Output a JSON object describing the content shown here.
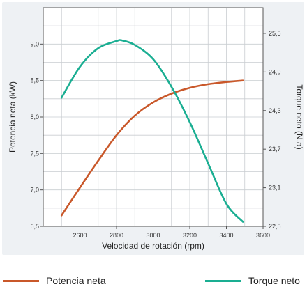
{
  "chart_data": {
    "type": "line",
    "xlabel": "Velocidad de rotación (rpm)",
    "ylabel_left": "Potencia neta (kW)",
    "ylabel_right": "Torque neto (N.a)",
    "xlim": [
      2400,
      3600
    ],
    "x_ticks": [
      "2600",
      "2800",
      "3000",
      "3200",
      "3400",
      "3600"
    ],
    "y_left_lim": [
      6.5,
      9.5
    ],
    "y_left_ticks": [
      "6,5",
      "7,0",
      "7,5",
      "8,0",
      "8,5",
      "9,0"
    ],
    "y_right_lim": [
      22.5,
      25.9
    ],
    "y_right_ticks": [
      "22,5",
      "23,1",
      "23,7",
      "24,3",
      "24,9",
      "25,5"
    ],
    "grid": true,
    "legend_position": "bottom",
    "series": [
      {
        "name": "Potencia neta",
        "axis": "left",
        "color": "#c9582a",
        "x": [
          2500,
          2600,
          2700,
          2800,
          2900,
          3000,
          3100,
          3200,
          3300,
          3400,
          3490
        ],
        "y": [
          6.65,
          7.03,
          7.4,
          7.75,
          8.02,
          8.2,
          8.32,
          8.4,
          8.45,
          8.48,
          8.5
        ]
      },
      {
        "name": "Torque neto",
        "axis": "right",
        "color": "#1aae92",
        "x": [
          2500,
          2600,
          2700,
          2800,
          2830,
          2900,
          3000,
          3100,
          3200,
          3300,
          3400,
          3490
        ],
        "y": [
          24.5,
          24.98,
          25.27,
          25.38,
          25.39,
          25.32,
          25.1,
          24.67,
          24.12,
          23.48,
          22.85,
          22.57
        ]
      }
    ]
  },
  "legend": [
    {
      "label": "Potencia neta",
      "color": "#c9582a"
    },
    {
      "label": "Torque neto",
      "color": "#1aae92"
    }
  ]
}
